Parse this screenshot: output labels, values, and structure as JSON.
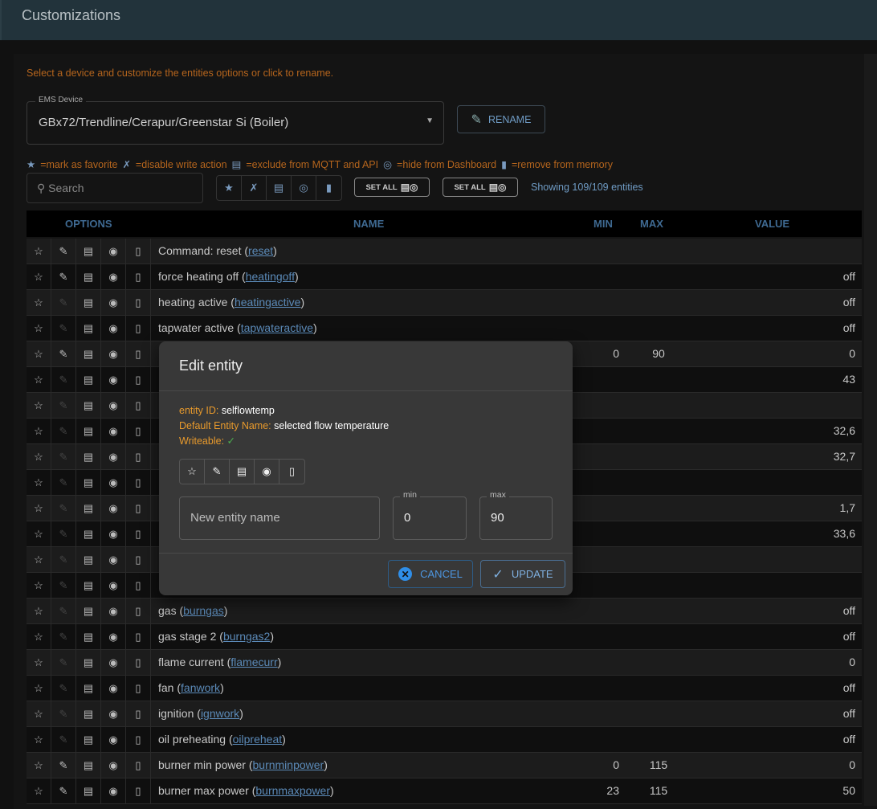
{
  "header": {
    "title": "Customizations"
  },
  "help_text": "Select a device and customize the entities options or click to rename.",
  "device_select": {
    "label": "EMS Device",
    "value": "GBx72/Trendline/Cerapur/Greenstar Si (Boiler)"
  },
  "rename_label": "RENAME",
  "legend": [
    {
      "icon": "star-icon",
      "text": "=mark as favorite"
    },
    {
      "icon": "pencil-off-icon",
      "text": "=disable write action"
    },
    {
      "icon": "comment-off-icon",
      "text": "=exclude from MQTT and API"
    },
    {
      "icon": "eye-off-icon",
      "text": "=hide from Dashboard"
    },
    {
      "icon": "delete-icon",
      "text": "=remove from memory"
    }
  ],
  "search": {
    "placeholder": "Search"
  },
  "set_all_label": "SET ALL",
  "entity_count": "Showing 109/109 entities",
  "table": {
    "headers": {
      "options": "OPTIONS",
      "name": "NAME",
      "min": "MIN",
      "max": "MAX",
      "value": "VALUE"
    },
    "rows": [
      {
        "name": "Command: reset",
        "id": "reset",
        "min": "",
        "max": "",
        "value": "",
        "writeable": true
      },
      {
        "name": "force heating off",
        "id": "heatingoff",
        "min": "",
        "max": "",
        "value": "off",
        "writeable": true
      },
      {
        "name": "heating active",
        "id": "heatingactive",
        "min": "",
        "max": "",
        "value": "off",
        "writeable": false
      },
      {
        "name": "tapwater active",
        "id": "tapwateractive",
        "min": "",
        "max": "",
        "value": "off",
        "writeable": false
      },
      {
        "name": "",
        "id": "",
        "min": "0",
        "max": "90",
        "value": "0",
        "writeable": true
      },
      {
        "name": "",
        "id": "",
        "min": "",
        "max": "",
        "value": "43",
        "writeable": false
      },
      {
        "name": "",
        "id": "",
        "min": "",
        "max": "",
        "value": "",
        "writeable": false
      },
      {
        "name": "",
        "id": "",
        "min": "",
        "max": "",
        "value": "32,6",
        "writeable": false
      },
      {
        "name": "",
        "id": "",
        "min": "",
        "max": "",
        "value": "32,7",
        "writeable": false
      },
      {
        "name": "",
        "id": "",
        "min": "",
        "max": "",
        "value": "",
        "writeable": false
      },
      {
        "name": "",
        "id": "",
        "min": "",
        "max": "",
        "value": "1,7",
        "writeable": false
      },
      {
        "name": "",
        "id": "",
        "min": "",
        "max": "",
        "value": "33,6",
        "writeable": false
      },
      {
        "name": "",
        "id": "",
        "min": "",
        "max": "",
        "value": "",
        "writeable": false
      },
      {
        "name": "",
        "id": "",
        "min": "",
        "max": "",
        "value": "",
        "writeable": false
      },
      {
        "name": "gas",
        "id": "burngas",
        "min": "",
        "max": "",
        "value": "off",
        "writeable": false
      },
      {
        "name": "gas stage 2",
        "id": "burngas2",
        "min": "",
        "max": "",
        "value": "off",
        "writeable": false
      },
      {
        "name": "flame current",
        "id": "flamecurr",
        "min": "",
        "max": "",
        "value": "0",
        "writeable": false
      },
      {
        "name": "fan",
        "id": "fanwork",
        "min": "",
        "max": "",
        "value": "off",
        "writeable": false
      },
      {
        "name": "ignition",
        "id": "ignwork",
        "min": "",
        "max": "",
        "value": "off",
        "writeable": false
      },
      {
        "name": "oil preheating",
        "id": "oilpreheat",
        "min": "",
        "max": "",
        "value": "off",
        "writeable": false
      },
      {
        "name": "burner min power",
        "id": "burnminpower",
        "min": "0",
        "max": "115",
        "value": "0",
        "writeable": true
      },
      {
        "name": "burner max power",
        "id": "burnmaxpower",
        "min": "23",
        "max": "115",
        "value": "50",
        "writeable": true
      }
    ]
  },
  "dialog": {
    "title": "Edit entity",
    "entity_id_label": "entity ID:",
    "entity_id": "selflowtemp",
    "default_name_label": "Default Entity Name:",
    "default_name": "selected flow temperature",
    "writeable_label": "Writeable:",
    "writeable_mark": "✓",
    "name_placeholder": "New entity name",
    "min_label": "min",
    "min_value": "0",
    "max_label": "max",
    "max_value": "90",
    "cancel_label": "CANCEL",
    "update_label": "UPDATE"
  },
  "colors": {
    "accent": "#4d96e0",
    "warning_text": "#e89a2c",
    "header_bg": "#22333b"
  }
}
